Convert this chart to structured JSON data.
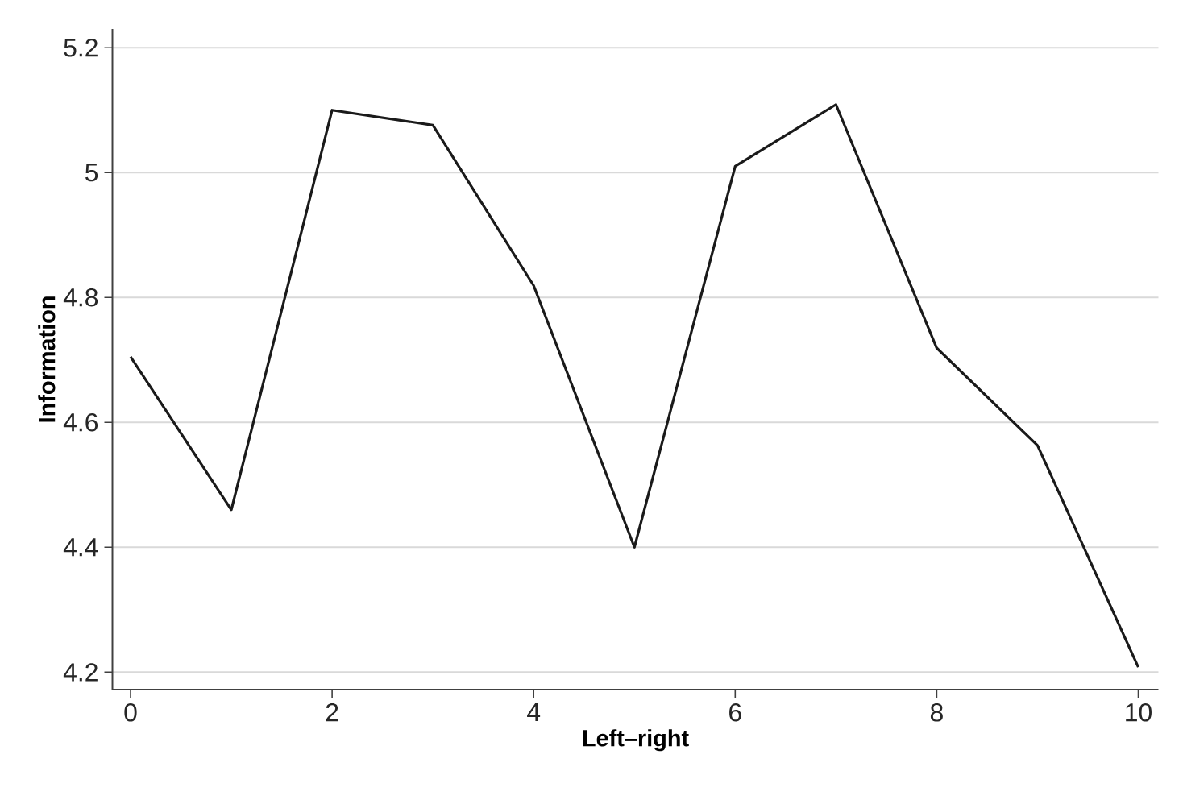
{
  "chart_data": {
    "type": "line",
    "xlabel": "Left–right",
    "ylabel": "Information",
    "x": [
      0,
      1,
      2,
      3,
      4,
      5,
      6,
      7,
      8,
      9,
      10
    ],
    "series": [
      {
        "color": "#1a1a1a",
        "values": [
          4.705,
          4.46,
          5.1,
          5.076,
          4.819,
          4.4,
          5.01,
          5.109,
          4.719,
          4.563,
          4.208
        ]
      }
    ],
    "xlim": [
      -0.18,
      10.2
    ],
    "ylim": [
      4.172,
      5.23
    ],
    "xticks": [
      0,
      2,
      4,
      6,
      8,
      10
    ],
    "yticks": [
      4.2,
      4.4,
      4.6,
      4.8,
      5,
      5.2
    ],
    "grid": "y",
    "marker": "none",
    "line_style": "solid"
  }
}
